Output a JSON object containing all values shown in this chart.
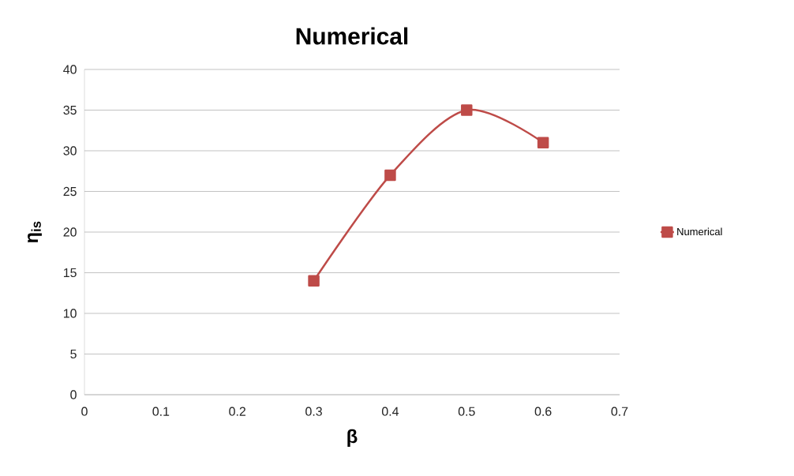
{
  "chart_data": {
    "type": "line",
    "title": "Numerical",
    "xlabel": "β",
    "ylabel": "η$_{is}$",
    "x": [
      0.3,
      0.4,
      0.5,
      0.6
    ],
    "series": [
      {
        "name": "Numerical",
        "color": "#be4b48",
        "values": [
          14,
          27,
          35,
          31
        ]
      }
    ],
    "xlim": [
      0,
      0.7
    ],
    "xticks": [
      0,
      0.1,
      0.2,
      0.3,
      0.4,
      0.5,
      0.6,
      0.7
    ],
    "ylim": [
      0,
      40
    ],
    "yticks": [
      0,
      5,
      10,
      15,
      20,
      25,
      30,
      35,
      40
    ],
    "grid": "y",
    "legend": "right",
    "marker": "square",
    "line_style": "solid"
  }
}
